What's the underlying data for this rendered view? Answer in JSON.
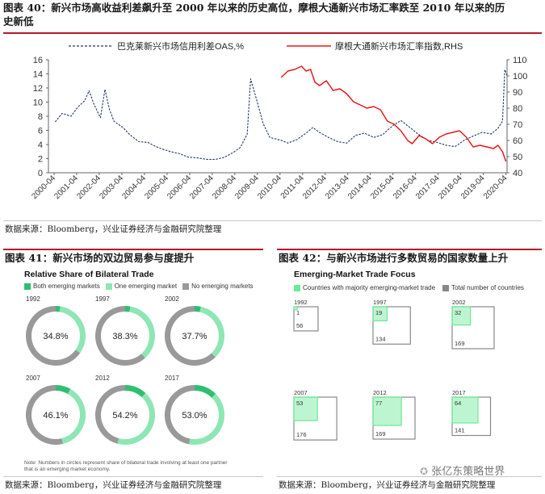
{
  "fig40": {
    "title_line1": "图表 40：新兴市场高收益利差飙升至 2000 年以来的历史高位，摩根大通新兴市场汇率跌至 2010 年以来的历",
    "title_line2": "史新低",
    "source": "数据来源：Bloomberg，兴业证券经济与金融研究院整理"
  },
  "fig41": {
    "title": "图表 41：新兴市场的双边贸易参与度提升",
    "source": "数据来源：Bloomberg，兴业证券经济与金融研究院整理",
    "panel_title": "Relative Share of Bilateral Trade",
    "legend": [
      "Both emerging markets",
      "One emerging market",
      "No emerging markets"
    ],
    "note_line1": "Note: Numbers in circles represent share of bilateral trade involving at least one partner",
    "note_line2": "that is an emerging market economy.",
    "colors": {
      "both": "#2fbf71",
      "one": "#8ee6b5",
      "none": "#999999"
    }
  },
  "fig42": {
    "title": "图表 42：与新兴市场进行多数贸易的国家数量上升",
    "source": "数据来源：Bloomberg，兴业证券经济与金融研究院整理",
    "panel_title": "Emerging-Market Trade Focus",
    "legend": [
      "Countries with majority emerging-market trade",
      "Total number of countries"
    ],
    "colors": {
      "majority": "#6ee89a",
      "total": "#888888"
    }
  },
  "watermark": "张亿东策略世界",
  "chart_data": [
    {
      "type": "line",
      "x_ticks": [
        "2000-04",
        "2001-04",
        "2002-04",
        "2003-04",
        "2004-04",
        "2005-04",
        "2006-04",
        "2007-04",
        "2008-04",
        "2009-04",
        "2010-04",
        "2011-04",
        "2012-04",
        "2013-04",
        "2014-04",
        "2015-04",
        "2016-04",
        "2017-04",
        "2018-04",
        "2019-04",
        "2020-04"
      ],
      "ylim": [
        0,
        16
      ],
      "y_ticks": [
        0,
        2,
        4,
        6,
        8,
        10,
        12,
        14,
        16
      ],
      "y2lim": [
        40,
        110
      ],
      "y2_ticks": [
        40,
        50,
        60,
        70,
        80,
        90,
        100,
        110
      ],
      "legend_position": "top",
      "series": [
        {
          "name": "巴克莱新兴市场信用利差OAS,%",
          "axis": "left",
          "color": "#1f3864",
          "style": "dashed",
          "x": [
            2000.3,
            2000.6,
            2001.0,
            2001.3,
            2001.6,
            2001.8,
            2002.0,
            2002.3,
            2002.5,
            2002.7,
            2002.9,
            2003.3,
            2003.6,
            2004.0,
            2004.4,
            2004.7,
            2005.0,
            2005.4,
            2005.8,
            2006.2,
            2006.6,
            2007.0,
            2007.4,
            2007.8,
            2008.2,
            2008.5,
            2008.8,
            2008.95,
            2009.2,
            2009.5,
            2009.8,
            2010.3,
            2010.6,
            2011.0,
            2011.4,
            2011.7,
            2012.0,
            2012.4,
            2012.8,
            2013.2,
            2013.6,
            2014.0,
            2014.4,
            2014.8,
            2015.0,
            2015.3,
            2015.6,
            2016.0,
            2016.4,
            2016.8,
            2017.2,
            2017.6,
            2018.0,
            2018.4,
            2018.8,
            2019.2,
            2019.6,
            2019.9,
            2020.1,
            2020.2,
            2020.3
          ],
          "y": [
            7.2,
            8.4,
            8.0,
            9.3,
            10.2,
            11.6,
            9.8,
            7.8,
            11.8,
            9.0,
            7.3,
            6.4,
            5.4,
            4.4,
            4.3,
            3.8,
            3.4,
            3.0,
            2.7,
            2.2,
            2.1,
            1.9,
            1.9,
            2.2,
            2.9,
            3.6,
            5.5,
            13.3,
            10.5,
            7.0,
            5.0,
            4.6,
            4.2,
            4.7,
            5.6,
            6.4,
            5.7,
            5.0,
            4.4,
            4.2,
            5.3,
            5.6,
            5.0,
            5.4,
            6.0,
            6.8,
            7.4,
            6.4,
            5.4,
            4.6,
            4.3,
            3.9,
            3.7,
            4.6,
            5.2,
            5.7,
            5.5,
            6.3,
            7.3,
            14.6,
            13.8
          ]
        },
        {
          "name": "摩根大通新兴市场汇率指数,RHS",
          "axis": "right",
          "color": "#e8181b",
          "style": "solid",
          "x": [
            2010.3,
            2010.6,
            2010.9,
            2011.2,
            2011.4,
            2011.6,
            2011.8,
            2012.0,
            2012.3,
            2012.6,
            2012.9,
            2013.2,
            2013.5,
            2013.8,
            2014.1,
            2014.4,
            2014.7,
            2015.0,
            2015.3,
            2015.6,
            2015.9,
            2016.1,
            2016.4,
            2016.7,
            2017.0,
            2017.3,
            2017.6,
            2017.9,
            2018.2,
            2018.5,
            2018.8,
            2019.1,
            2019.4,
            2019.7,
            2019.9,
            2020.1,
            2020.25
          ],
          "y": [
            99,
            103,
            104,
            106,
            103,
            104,
            96,
            94,
            97,
            91,
            92,
            89,
            84,
            82,
            80,
            81,
            79,
            72,
            70,
            66,
            60,
            58,
            63,
            61,
            58,
            62,
            64,
            65,
            66,
            62,
            56,
            57,
            56,
            55,
            57,
            53,
            47
          ]
        }
      ]
    },
    {
      "type": "pie",
      "title": "Relative Share of Bilateral Trade",
      "labels": [
        "Both emerging markets",
        "One emerging market",
        "No emerging markets"
      ],
      "years": [
        "1992",
        "1997",
        "2002",
        "2007",
        "2012",
        "2017"
      ],
      "center_labels": [
        "34.8%",
        "38.3%",
        "37.7%",
        "46.1%",
        "54.2%",
        "53.0%"
      ],
      "both": [
        2.5,
        2.8,
        3.4,
        8.3,
        12.0,
        12.5
      ],
      "one": [
        32.3,
        35.5,
        34.3,
        37.8,
        42.2,
        40.5
      ],
      "none": [
        65.2,
        61.7,
        62.3,
        53.9,
        45.8,
        47.0
      ]
    },
    {
      "type": "bar",
      "title": "Emerging-Market Trade Focus",
      "categories": [
        "1992",
        "1997",
        "2002",
        "2007",
        "2012",
        "2017"
      ],
      "series": [
        {
          "name": "Countries with majority emerging-market trade",
          "values": [
            1,
            19,
            32,
            53,
            77,
            64
          ]
        },
        {
          "name": "Total number of countries",
          "values": [
            56,
            134,
            169,
            176,
            169,
            141
          ]
        }
      ]
    }
  ]
}
